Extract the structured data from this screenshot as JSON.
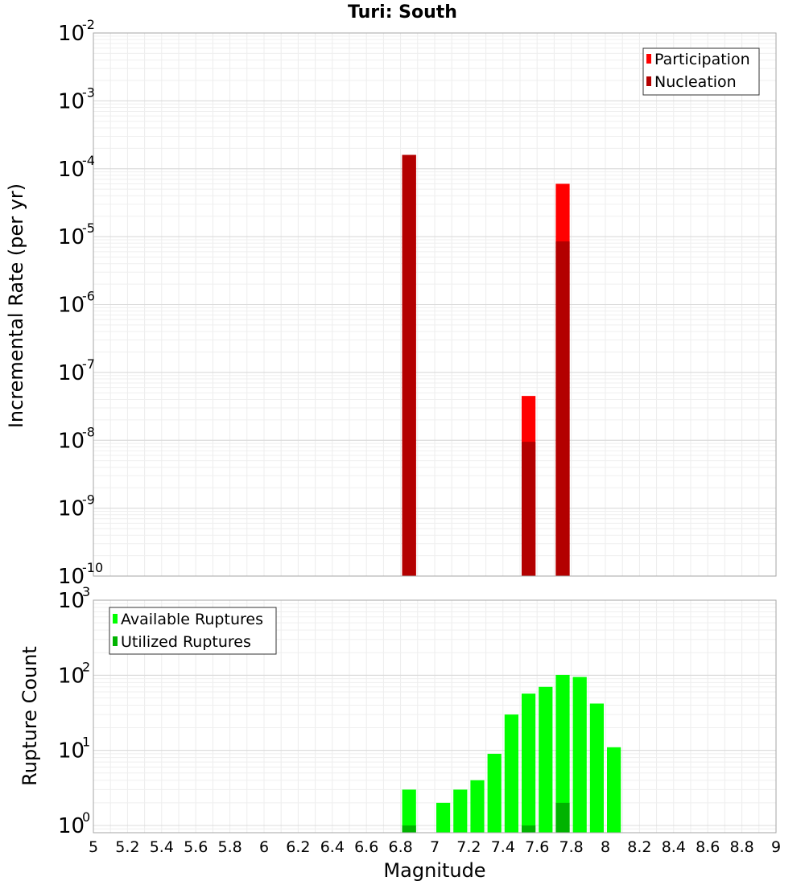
{
  "chart_data": [
    {
      "type": "bar",
      "title": "Turi: South",
      "xlabel": "",
      "ylabel": "Incremental Rate (per yr)",
      "xlim": [
        5,
        9
      ],
      "ylim": [
        1e-10,
        0.01
      ],
      "yscale": "log",
      "bin_width": 0.1,
      "grid": true,
      "legend_position": "top-right",
      "y_ticks": [
        {
          "base": "10",
          "exp": "-10"
        },
        {
          "base": "10",
          "exp": "-9"
        },
        {
          "base": "10",
          "exp": "-8"
        },
        {
          "base": "10",
          "exp": "-7"
        },
        {
          "base": "10",
          "exp": "-6"
        },
        {
          "base": "10",
          "exp": "-5"
        },
        {
          "base": "10",
          "exp": "-4"
        },
        {
          "base": "10",
          "exp": "-3"
        },
        {
          "base": "10",
          "exp": "-2"
        }
      ],
      "series": [
        {
          "name": "Participation",
          "color": "#ff0000",
          "x": [
            6.85,
            7.55,
            7.75
          ],
          "values": [
            0.00016,
            4.5e-08,
            6e-05
          ]
        },
        {
          "name": "Nucleation",
          "color": "#b30000",
          "x": [
            6.85,
            7.55,
            7.75
          ],
          "values": [
            0.00016,
            9.5e-09,
            8.5e-06
          ]
        }
      ]
    },
    {
      "type": "bar",
      "title": "",
      "xlabel": "Magnitude",
      "ylabel": "Rupture Count",
      "xlim": [
        5,
        9
      ],
      "ylim": [
        0.8,
        1000
      ],
      "yscale": "log",
      "bin_width": 0.1,
      "grid": true,
      "legend_position": "top-left",
      "y_ticks": [
        {
          "base": "10",
          "exp": "0"
        },
        {
          "base": "10",
          "exp": "1"
        },
        {
          "base": "10",
          "exp": "2"
        },
        {
          "base": "10",
          "exp": "3"
        }
      ],
      "x_ticks": [
        "5",
        "5.2",
        "5.4",
        "5.6",
        "5.8",
        "6",
        "6.2",
        "6.4",
        "6.6",
        "6.8",
        "7",
        "7.2",
        "7.4",
        "7.6",
        "7.8",
        "8",
        "8.2",
        "8.4",
        "8.6",
        "8.8",
        "9"
      ],
      "series": [
        {
          "name": "Available Ruptures",
          "color": "#00ff00",
          "x": [
            6.85,
            7.05,
            7.15,
            7.25,
            7.35,
            7.45,
            7.55,
            7.65,
            7.75,
            7.85,
            7.95,
            8.05
          ],
          "values": [
            3,
            2,
            3,
            4,
            9,
            30,
            57,
            70,
            101,
            95,
            42,
            11
          ]
        },
        {
          "name": "Utilized Ruptures",
          "color": "#00b300",
          "x": [
            6.85,
            7.55,
            7.75
          ],
          "values": [
            1,
            1,
            2
          ]
        }
      ]
    }
  ]
}
